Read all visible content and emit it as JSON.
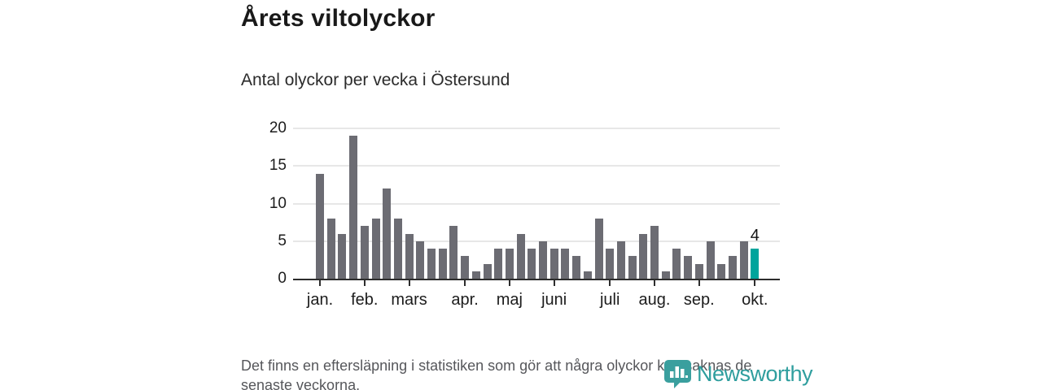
{
  "header": {
    "title": "Årets viltolyckor",
    "subtitle": "Antal olyckor per vecka i Östersund"
  },
  "chart_data": {
    "type": "bar",
    "title": "Årets viltolyckor",
    "subtitle": "Antal olyckor per vecka i Östersund",
    "xlabel": "",
    "ylabel": "",
    "ylim": [
      0,
      20
    ],
    "yticks": [
      0,
      5,
      10,
      15,
      20
    ],
    "grid": true,
    "legend": "none",
    "unit": "olyckor per vecka",
    "values": [
      14,
      8,
      6,
      19,
      7,
      8,
      12,
      8,
      6,
      5,
      4,
      4,
      7,
      3,
      1,
      2,
      4,
      4,
      6,
      4,
      5,
      4,
      4,
      3,
      1,
      8,
      4,
      5,
      3,
      6,
      7,
      1,
      4,
      3,
      2,
      5,
      2,
      3,
      5,
      4
    ],
    "month_ticks": [
      {
        "label": "jan.",
        "index": 0
      },
      {
        "label": "feb.",
        "index": 4
      },
      {
        "label": "mars",
        "index": 8
      },
      {
        "label": "apr.",
        "index": 13
      },
      {
        "label": "maj",
        "index": 17
      },
      {
        "label": "juni",
        "index": 21
      },
      {
        "label": "juli",
        "index": 26
      },
      {
        "label": "aug.",
        "index": 30
      },
      {
        "label": "sep.",
        "index": 34
      },
      {
        "label": "okt.",
        "index": 39
      }
    ],
    "highlight_index": 39,
    "highlight_label": "4",
    "colors": {
      "bar": "#6c6c73",
      "highlight": "#00a49c",
      "axis": "#2d2d2d",
      "grid": "#e7e7e7"
    }
  },
  "footer": {
    "note": "Det finns en eftersläpning i statistiken som gör att några olyckor kan saknas de senaste veckorna."
  },
  "logo": {
    "wordmark": "Newsworthy",
    "color": "#2f9e9e"
  }
}
